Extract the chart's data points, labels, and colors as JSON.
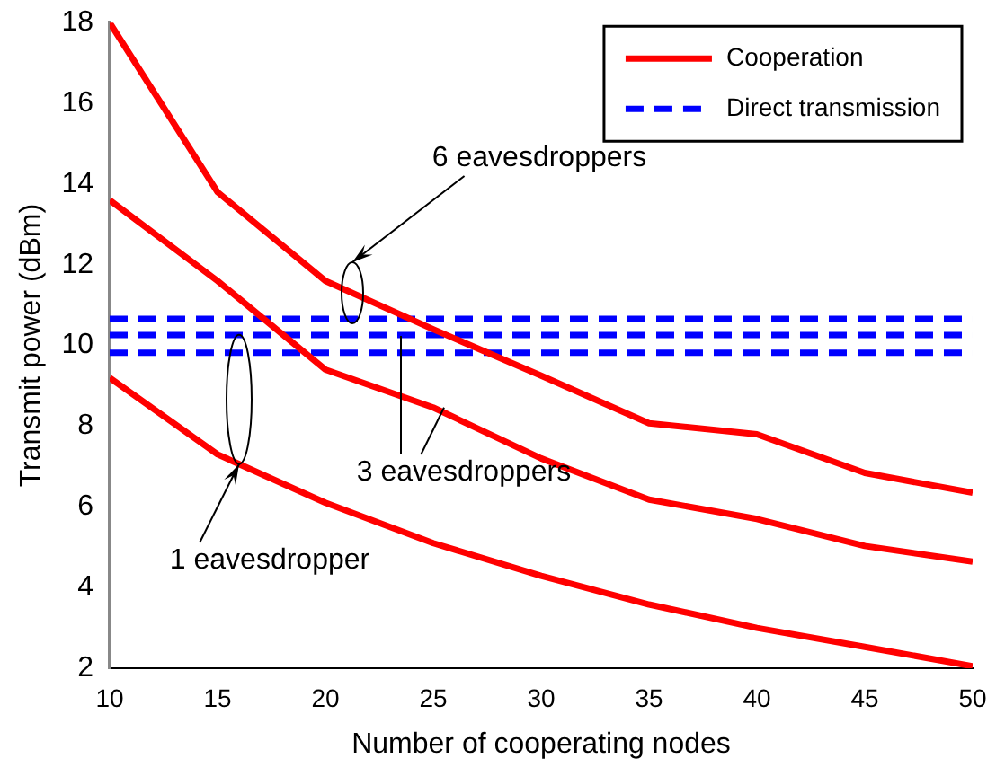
{
  "chart_data": {
    "type": "line",
    "xlabel": "Number of cooperating nodes",
    "ylabel": "Transmit power (dBm)",
    "x": [
      10,
      15,
      20,
      25,
      30,
      35,
      40,
      45,
      50
    ],
    "series": [
      {
        "name": "Cooperation",
        "color": "#ff0000",
        "line_style": "solid",
        "values": [
          18,
          13.8,
          11.6,
          10.4,
          9.25,
          8.07,
          7.8,
          6.84,
          6.35
        ]
      },
      {
        "color": "#ff0000",
        "line_style": "solid",
        "values": [
          13.6,
          11.6,
          9.4,
          8.46,
          7.2,
          6.18,
          5.7,
          5.03,
          4.64
        ]
      },
      {
        "color": "#ff0000",
        "line_style": "solid",
        "values": [
          9.2,
          7.3,
          6.1,
          5.1,
          4.29,
          3.58,
          3.0,
          2.53,
          2.05
        ]
      },
      {
        "name": "Direct transmission",
        "color": "#0000ff",
        "line_style": "dashed",
        "values": [
          10.66,
          10.66,
          10.66,
          10.66,
          10.66,
          10.66,
          10.66,
          10.66,
          10.66
        ]
      },
      {
        "color": "#0000ff",
        "line_style": "dashed",
        "values": [
          10.26,
          10.26,
          10.26,
          10.26,
          10.26,
          10.26,
          10.26,
          10.26,
          10.26
        ]
      },
      {
        "color": "#0000ff",
        "line_style": "dashed",
        "values": [
          9.82,
          9.82,
          9.82,
          9.82,
          9.82,
          9.82,
          9.82,
          9.82,
          9.82
        ]
      }
    ],
    "xlim": [
      10,
      50
    ],
    "xticks": [
      10,
      15,
      20,
      25,
      30,
      35,
      40,
      45,
      50
    ],
    "ylim": [
      2,
      18
    ],
    "yticks": [
      2,
      4,
      6,
      8,
      10,
      12,
      14,
      16,
      18
    ],
    "grid": false,
    "legend": "top right",
    "marker": "none",
    "annotations": [
      "6 eavesdroppers",
      {
        "text": "3 eavesdroppers",
        "x": 25.5,
        "y": 8.46
      },
      {
        "text": "1 eavesdropper",
        "x": 16,
        "y": 7.06
      }
    ]
  }
}
